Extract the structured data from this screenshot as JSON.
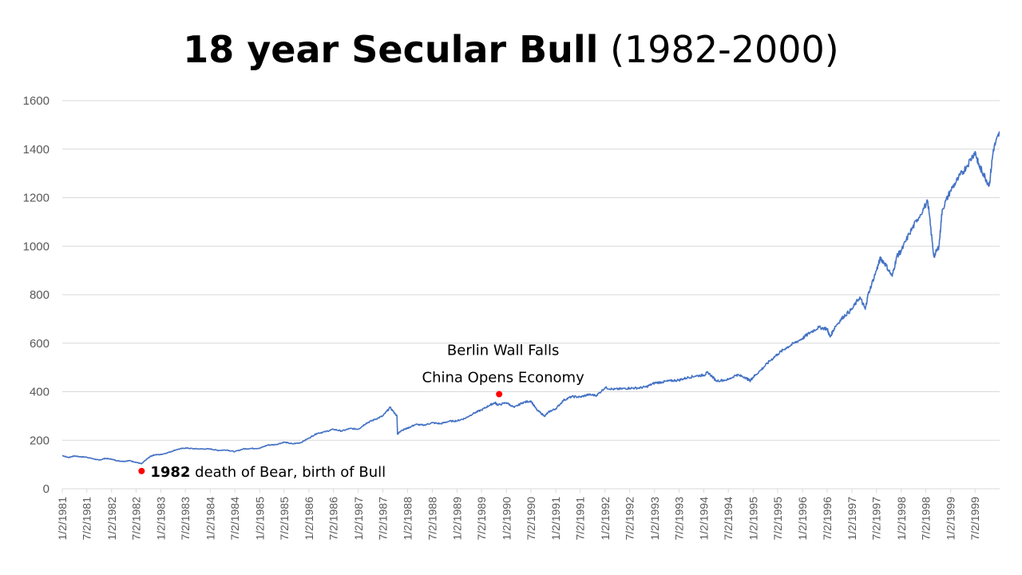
{
  "slide": {
    "title_bold": "18 year Secular Bull",
    "title_rest": "(1982-2000)"
  },
  "colors": {
    "line": "#4472C4",
    "marker": "#FF0000",
    "grid": "#D9D9D9",
    "axis_text": "#595959"
  },
  "chart_data": {
    "type": "line",
    "title": "18 year Secular Bull (1982-2000)",
    "xlabel": "",
    "ylabel": "",
    "ylim": [
      0,
      1600
    ],
    "y_ticks": [
      0,
      200,
      400,
      600,
      800,
      1000,
      1200,
      1400,
      1600
    ],
    "grid": true,
    "legend": "none",
    "x_tick_labels": [
      "1/2/1981",
      "7/2/1981",
      "1/2/1982",
      "7/2/1982",
      "1/2/1983",
      "7/2/1983",
      "1/2/1984",
      "7/2/1984",
      "1/2/1985",
      "7/2/1985",
      "1/2/1986",
      "7/2/1986",
      "1/2/1987",
      "7/2/1987",
      "1/2/1988",
      "7/2/1988",
      "1/2/1989",
      "7/2/1989",
      "1/2/1990",
      "7/2/1990",
      "1/2/1991",
      "7/2/1991",
      "1/2/1992",
      "7/2/1992",
      "1/2/1993",
      "7/2/1993",
      "1/2/1994",
      "7/2/1994",
      "1/2/1995",
      "7/2/1995",
      "1/2/1996",
      "7/2/1996",
      "1/2/1997",
      "7/2/1997",
      "1/2/1998",
      "7/2/1998",
      "1/2/1999",
      "7/2/1999"
    ],
    "x_range": [
      "1/2/1981",
      "12/31/1999"
    ],
    "series": [
      {
        "x": [
          "1/2/1981",
          "2/15/1981",
          "4/1/1981",
          "5/15/1981",
          "7/2/1981",
          "8/15/1981",
          "10/1/1981",
          "11/15/1981",
          "1/2/1982",
          "2/15/1982",
          "4/1/1982",
          "5/15/1982",
          "7/2/1982",
          "8/12/1982",
          "9/15/1982",
          "10/15/1982",
          "11/15/1982",
          "1/2/1983",
          "3/1/1983",
          "5/1/1983",
          "7/2/1983",
          "9/1/1983",
          "11/1/1983",
          "1/2/1984",
          "3/1/1984",
          "5/1/1984",
          "7/2/1984",
          "9/1/1984",
          "11/1/1984",
          "1/2/1985",
          "3/1/1985",
          "5/1/1985",
          "7/2/1985",
          "9/1/1985",
          "11/1/1985",
          "1/2/1986",
          "3/1/1986",
          "5/1/1986",
          "7/2/1986",
          "9/1/1986",
          "11/1/1986",
          "1/2/1987",
          "3/1/1987",
          "5/1/1987",
          "7/2/1987",
          "8/25/1987",
          "10/15/1987",
          "10/19/1987",
          "11/15/1987",
          "1/2/1988",
          "3/1/1988",
          "5/1/1988",
          "7/2/1988",
          "9/1/1988",
          "11/1/1988",
          "1/2/1989",
          "3/1/1989",
          "5/1/1989",
          "7/2/1989",
          "9/1/1989",
          "10/9/1989",
          "11/1/1989",
          "1/2/1990",
          "3/1/1990",
          "5/1/1990",
          "7/2/1990",
          "8/15/1990",
          "10/11/1990",
          "11/15/1990",
          "1/2/1991",
          "3/1/1991",
          "5/1/1991",
          "7/2/1991",
          "9/1/1991",
          "11/1/1991",
          "1/2/1992",
          "3/1/1992",
          "5/1/1992",
          "7/2/1992",
          "9/1/1992",
          "11/1/1992",
          "1/2/1993",
          "3/1/1993",
          "5/1/1993",
          "7/2/1993",
          "9/1/1993",
          "11/1/1993",
          "1/2/1994",
          "2/1/1994",
          "4/4/1994",
          "7/2/1994",
          "9/1/1994",
          "11/1/1994",
          "12/9/1994",
          "1/2/1995",
          "3/1/1995",
          "5/1/1995",
          "7/2/1995",
          "9/1/1995",
          "11/1/1995",
          "1/2/1996",
          "3/1/1996",
          "5/1/1996",
          "7/2/1996",
          "7/24/1996",
          "9/1/1996",
          "11/1/1996",
          "1/2/1997",
          "3/1/1997",
          "4/11/1997",
          "5/1/1997",
          "7/2/1997",
          "8/1/1997",
          "9/1/1997",
          "10/27/1997",
          "12/1/1997",
          "1/2/1998",
          "3/1/1998",
          "5/1/1998",
          "7/17/1998",
          "8/31/1998",
          "10/8/1998",
          "11/1/1998",
          "1/2/1999",
          "3/1/1999",
          "5/1/1999",
          "7/2/1999",
          "8/1/1999",
          "9/1/1999",
          "10/15/1999",
          "11/15/1999",
          "12/31/1999"
        ],
        "values": [
          137,
          129,
          135,
          132,
          130,
          124,
          118,
          125,
          122,
          115,
          113,
          116,
          109,
          103,
          120,
          133,
          140,
          141,
          150,
          162,
          168,
          165,
          164,
          164,
          158,
          160,
          153,
          164,
          166,
          167,
          180,
          182,
          192,
          185,
          190,
          209,
          228,
          235,
          245,
          238,
          248,
          246,
          270,
          285,
          300,
          335,
          300,
          225,
          240,
          250,
          265,
          262,
          272,
          268,
          278,
          280,
          290,
          310,
          325,
          345,
          355,
          345,
          355,
          335,
          355,
          362,
          325,
          300,
          318,
          330,
          365,
          380,
          378,
          388,
          385,
          417,
          410,
          412,
          415,
          415,
          420,
          436,
          440,
          445,
          448,
          458,
          465,
          468,
          480,
          445,
          450,
          470,
          460,
          445,
          460,
          490,
          525,
          555,
          580,
          600,
          620,
          645,
          665,
          660,
          626,
          670,
          710,
          740,
          790,
          740,
          800,
          900,
          950,
          930,
          876,
          960,
          980,
          1050,
          1110,
          1185,
          957,
          1000,
          1150,
          1230,
          1280,
          1330,
          1390,
          1330,
          1300,
          1250,
          1400,
          1469
        ]
      }
    ],
    "annotations": [
      {
        "date": "8/12/1982",
        "value": 73,
        "label_bold": "1982",
        "label_rest": "death of Bear, birth of Bull"
      },
      {
        "date": "11/9/1989",
        "value": 390,
        "label_line1": "Berlin Wall Falls",
        "label_line2": "China Opens Economy"
      }
    ]
  }
}
